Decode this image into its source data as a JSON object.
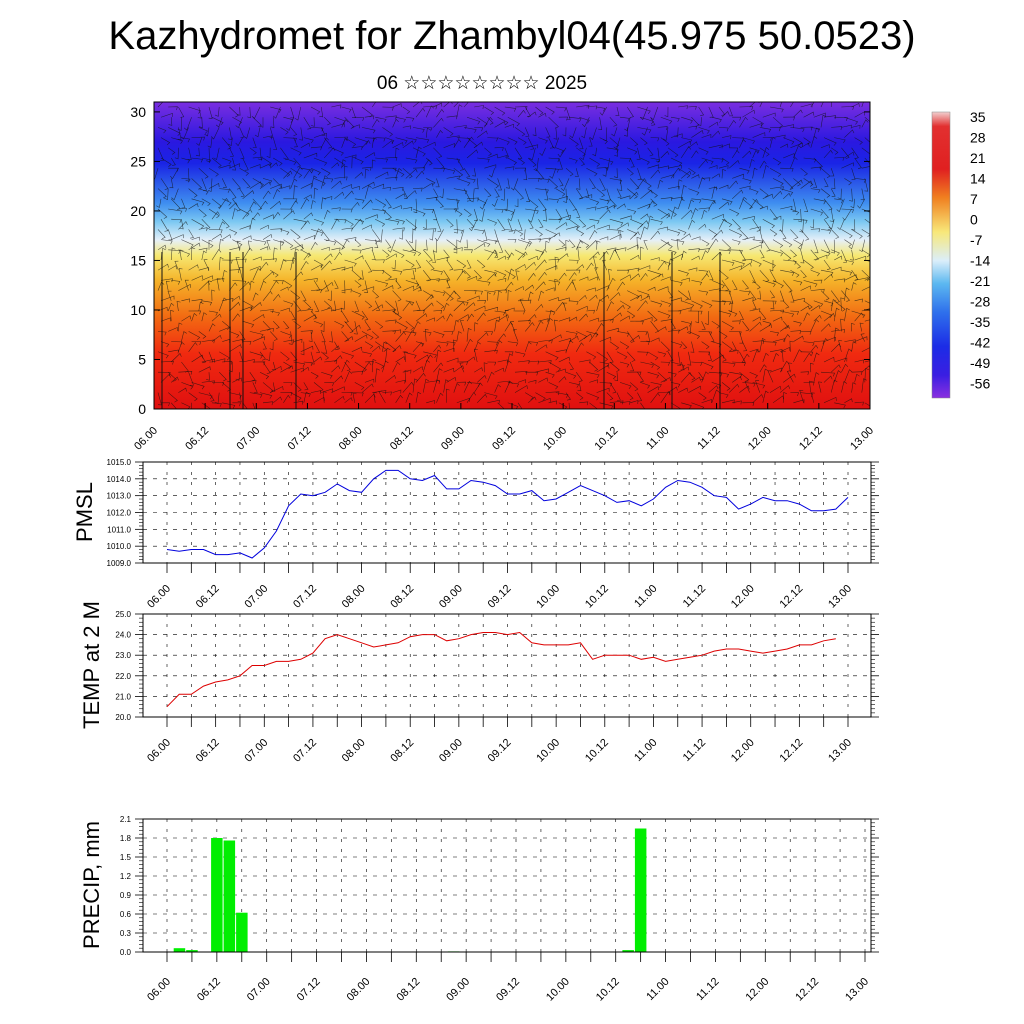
{
  "title": "Kazhydromet for Zhambyl04(45.975 50.0523)",
  "subtitle": "06 ☆☆☆☆☆☆☆☆ 2025",
  "colors": {
    "pmsl_line": "#0000dd",
    "temp_line": "#dd0000",
    "precip_bar": "#00ee00",
    "grid": "#000000"
  },
  "chart_data": [
    {
      "type": "heatmap",
      "name": "cross-section",
      "ylim": [
        0,
        31
      ],
      "y_ticks": [
        0,
        5,
        10,
        15,
        20,
        25,
        30
      ],
      "x_ticks": [
        "06.00",
        "06.12",
        "07.00",
        "07.12",
        "08.00",
        "08.12",
        "09.00",
        "09.12",
        "10.00",
        "10.12",
        "11.00",
        "11.12",
        "12.00",
        "12.12",
        "13.00"
      ],
      "colorbar_labels": [
        "35",
        "28",
        "21",
        "14",
        "7",
        "0",
        "-7",
        "-14",
        "-21",
        "-28",
        "-35",
        "-42",
        "-49",
        "-56"
      ],
      "colorbar_range": [
        -60,
        38
      ],
      "wind_barbs": true
    },
    {
      "type": "line",
      "ylabel": "PMSL",
      "ylim": [
        1009.0,
        1015.0
      ],
      "y_ticks": [
        "1009.0",
        "1010.0",
        "1011.0",
        "1012.0",
        "1013.0",
        "1014.0",
        "1015.0"
      ],
      "x_ticks": [
        "06.00",
        "06.12",
        "07.00",
        "07.12",
        "08.00",
        "08.12",
        "09.00",
        "09.12",
        "10.00",
        "10.12",
        "11.00",
        "11.12",
        "12.00",
        "12.12",
        "13.00"
      ],
      "x": [
        0,
        3,
        6,
        9,
        12,
        15,
        18,
        21,
        24,
        27,
        30,
        33,
        36,
        39,
        42,
        45,
        48,
        51,
        54,
        57,
        60,
        63,
        66,
        69,
        72,
        75,
        78,
        81,
        84,
        87,
        90,
        93,
        96,
        99,
        102,
        105,
        108,
        111,
        114,
        117,
        120,
        123,
        126,
        129,
        132,
        135,
        138,
        141,
        144,
        147,
        150,
        153,
        156,
        159,
        162,
        165
      ],
      "values": [
        1009.8,
        1009.7,
        1009.8,
        1009.8,
        1009.5,
        1009.5,
        1009.6,
        1009.3,
        1009.9,
        1010.9,
        1012.4,
        1013.1,
        1013.0,
        1013.2,
        1013.7,
        1013.3,
        1013.2,
        1014.0,
        1014.5,
        1014.5,
        1014.0,
        1013.9,
        1014.2,
        1013.4,
        1013.4,
        1013.9,
        1013.8,
        1013.6,
        1013.1,
        1013.1,
        1013.3,
        1012.7,
        1012.8,
        1013.2,
        1013.6,
        1013.3,
        1013.0,
        1012.6,
        1012.7,
        1012.4,
        1012.8,
        1013.5,
        1013.9,
        1013.8,
        1013.5,
        1013.0,
        1012.9,
        1012.2,
        1012.5,
        1012.9,
        1012.7,
        1012.7,
        1012.5,
        1012.1,
        1012.1,
        1012.2
      ],
      "x_end": 168
    },
    {
      "type": "line",
      "ylabel": "TEMP at 2 M",
      "ylim": [
        20.0,
        25.0
      ],
      "y_ticks": [
        "20.0",
        "21.0",
        "22.0",
        "23.0",
        "24.0",
        "25.0"
      ],
      "x_ticks": [
        "06.00",
        "06.12",
        "07.00",
        "07.12",
        "08.00",
        "08.12",
        "09.00",
        "09.12",
        "10.00",
        "10.12",
        "11.00",
        "11.12",
        "12.00",
        "12.12",
        "13.00"
      ],
      "x": [
        0,
        3,
        6,
        9,
        12,
        15,
        18,
        21,
        24,
        27,
        30,
        33,
        36,
        39,
        42,
        45,
        48,
        51,
        54,
        57,
        60,
        63,
        66,
        69,
        72,
        75,
        78,
        81,
        84,
        87,
        90,
        93,
        96,
        99,
        102,
        105,
        108,
        111,
        114,
        117,
        120,
        123,
        126,
        129,
        132,
        135,
        138,
        141,
        144,
        147,
        150,
        153,
        156,
        159,
        162,
        165
      ],
      "values": [
        20.5,
        21.1,
        21.1,
        21.5,
        21.7,
        21.8,
        22.0,
        22.5,
        22.5,
        22.7,
        22.7,
        22.8,
        23.1,
        23.8,
        24.0,
        23.8,
        23.6,
        23.4,
        23.5,
        23.6,
        23.9,
        24.0,
        24.0,
        23.7,
        23.8,
        24.0,
        24.1,
        24.1,
        24.0,
        24.1,
        23.6,
        23.5,
        23.5,
        23.5,
        23.6,
        22.8,
        23.0,
        23.0,
        23.0,
        22.8,
        22.9,
        22.7,
        22.8,
        22.9,
        23.0,
        23.2,
        23.3,
        23.3,
        23.2,
        23.1,
        23.2,
        23.3,
        23.5,
        23.5,
        23.7,
        23.8
      ]
    },
    {
      "type": "bar",
      "ylabel": "PRECIP, mm",
      "ylim": [
        0.0,
        2.1
      ],
      "y_ticks": [
        "0.0",
        "0.3",
        "0.6",
        "0.9",
        "1.2",
        "1.5",
        "1.8",
        "2.1"
      ],
      "x_ticks": [
        "06.00",
        "06.12",
        "07.00",
        "07.12",
        "08.00",
        "08.12",
        "09.00",
        "09.12",
        "10.00",
        "10.12",
        "11.00",
        "11.12",
        "12.00",
        "12.12",
        "13.00"
      ],
      "x": [
        3,
        6,
        12,
        15,
        18,
        69,
        111,
        114
      ],
      "values": [
        0.06,
        0.03,
        1.8,
        1.76,
        0.62,
        0.01,
        0.03,
        1.95
      ]
    }
  ]
}
